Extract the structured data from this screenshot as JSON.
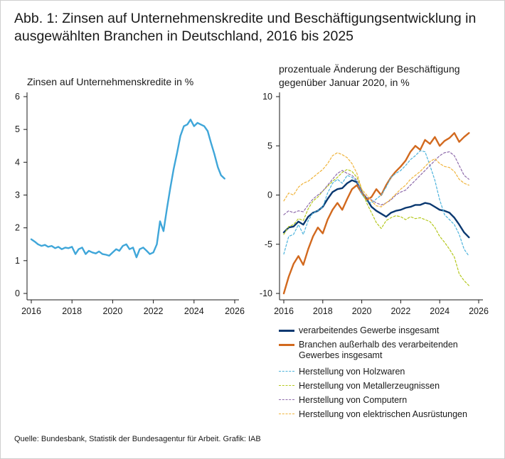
{
  "title": "Abb. 1: Zinsen auf Unternehmenskredite und Beschäftigungsentwicklung in ausgewählten Branchen in Deutschland, 2016 bis 2025",
  "source": "Quelle: Bundesbank, Statistik der Bundesagentur für Arbeit. Grafik: IAB",
  "chart_data": [
    {
      "type": "line",
      "title": "Zinsen auf Unternehmenskredite in %",
      "xlabel": "",
      "ylabel": "",
      "xlim": [
        2016,
        2026
      ],
      "ylim": [
        0,
        6
      ],
      "xticks": [
        2016,
        2018,
        2020,
        2022,
        2024,
        2026
      ],
      "yticks": [
        0,
        1,
        2,
        3,
        4,
        5,
        6
      ],
      "grid": false,
      "series": [
        {
          "name": "",
          "color": "#3fa6d9",
          "dash": "solid",
          "x": [
            2016.0,
            2016.17,
            2016.33,
            2016.5,
            2016.67,
            2016.83,
            2017.0,
            2017.17,
            2017.33,
            2017.5,
            2017.67,
            2017.83,
            2018.0,
            2018.17,
            2018.33,
            2018.5,
            2018.67,
            2018.83,
            2019.0,
            2019.17,
            2019.33,
            2019.5,
            2019.67,
            2019.83,
            2020.0,
            2020.17,
            2020.33,
            2020.5,
            2020.67,
            2020.83,
            2021.0,
            2021.17,
            2021.33,
            2021.5,
            2021.67,
            2021.83,
            2022.0,
            2022.17,
            2022.33,
            2022.5,
            2022.67,
            2022.83,
            2023.0,
            2023.17,
            2023.33,
            2023.5,
            2023.67,
            2023.83,
            2024.0,
            2024.17,
            2024.33,
            2024.5,
            2024.67,
            2024.83,
            2025.0,
            2025.17,
            2025.33,
            2025.5
          ],
          "y": [
            1.65,
            1.58,
            1.5,
            1.45,
            1.48,
            1.42,
            1.45,
            1.38,
            1.42,
            1.35,
            1.4,
            1.38,
            1.42,
            1.2,
            1.35,
            1.4,
            1.2,
            1.3,
            1.25,
            1.22,
            1.28,
            1.2,
            1.18,
            1.15,
            1.25,
            1.35,
            1.3,
            1.45,
            1.5,
            1.35,
            1.4,
            1.1,
            1.35,
            1.4,
            1.3,
            1.2,
            1.25,
            1.5,
            2.2,
            1.9,
            2.6,
            3.2,
            3.8,
            4.3,
            4.8,
            5.1,
            5.15,
            5.3,
            5.1,
            5.2,
            5.15,
            5.1,
            4.95,
            4.6,
            4.25,
            3.85,
            3.6,
            3.5
          ]
        }
      ]
    },
    {
      "type": "line",
      "title": "prozentuale Änderung der Beschäftigung gegenüber Januar 2020, in %",
      "xlabel": "",
      "ylabel": "",
      "xlim": [
        2016,
        2026
      ],
      "ylim": [
        -10,
        10
      ],
      "xticks": [
        2016,
        2018,
        2020,
        2022,
        2024,
        2026
      ],
      "yticks": [
        -10,
        -5,
        0,
        5,
        10
      ],
      "grid": false,
      "legend": "bottom",
      "series": [
        {
          "name": "verarbeitendes Gewerbe insgesamt",
          "color": "#0a3870",
          "dash": "solid",
          "x": [
            2016.0,
            2016.25,
            2016.5,
            2016.75,
            2017.0,
            2017.25,
            2017.5,
            2017.75,
            2018.0,
            2018.25,
            2018.5,
            2018.75,
            2019.0,
            2019.25,
            2019.5,
            2019.75,
            2020.0,
            2020.25,
            2020.5,
            2020.75,
            2021.0,
            2021.25,
            2021.5,
            2021.75,
            2022.0,
            2022.25,
            2022.5,
            2022.75,
            2023.0,
            2023.25,
            2023.5,
            2023.75,
            2024.0,
            2024.25,
            2024.5,
            2024.75,
            2025.0,
            2025.25,
            2025.5
          ],
          "y": [
            -3.8,
            -3.3,
            -3.2,
            -2.7,
            -3.0,
            -2.2,
            -1.8,
            -1.6,
            -1.2,
            -0.4,
            0.3,
            0.6,
            0.7,
            1.2,
            1.5,
            1.3,
            0.3,
            -0.4,
            -1.2,
            -1.6,
            -1.9,
            -2.2,
            -1.8,
            -1.6,
            -1.5,
            -1.3,
            -1.2,
            -1.0,
            -1.0,
            -0.8,
            -0.9,
            -1.2,
            -1.5,
            -1.6,
            -1.8,
            -2.3,
            -3.0,
            -3.8,
            -4.3
          ]
        },
        {
          "name": "Branchen außerhalb des verarbeitenden Gewerbes insgesamt",
          "color": "#d2691e",
          "dash": "solid",
          "x": [
            2016.0,
            2016.25,
            2016.5,
            2016.75,
            2017.0,
            2017.25,
            2017.5,
            2017.75,
            2018.0,
            2018.25,
            2018.5,
            2018.75,
            2019.0,
            2019.25,
            2019.5,
            2019.75,
            2020.0,
            2020.25,
            2020.5,
            2020.75,
            2021.0,
            2021.25,
            2021.5,
            2021.75,
            2022.0,
            2022.25,
            2022.5,
            2022.75,
            2023.0,
            2023.25,
            2023.5,
            2023.75,
            2024.0,
            2024.25,
            2024.5,
            2024.75,
            2025.0,
            2025.25,
            2025.5
          ],
          "y": [
            -10.0,
            -8.3,
            -7.0,
            -6.2,
            -7.1,
            -5.5,
            -4.2,
            -3.3,
            -3.9,
            -2.5,
            -1.5,
            -0.8,
            -1.5,
            -0.4,
            0.6,
            1.0,
            0.2,
            -0.5,
            -0.2,
            0.6,
            0.0,
            1.0,
            1.8,
            2.4,
            2.9,
            3.5,
            4.4,
            5.0,
            4.6,
            5.6,
            5.2,
            5.9,
            5.0,
            5.5,
            5.8,
            6.3,
            5.4,
            5.9,
            6.3
          ]
        },
        {
          "name": "Herstellung von Holzwaren",
          "color": "#4db3dc",
          "dash": "dashed",
          "x": [
            2016.0,
            2016.25,
            2016.5,
            2016.75,
            2017.0,
            2017.25,
            2017.5,
            2017.75,
            2018.0,
            2018.25,
            2018.5,
            2018.75,
            2019.0,
            2019.25,
            2019.5,
            2019.75,
            2020.0,
            2020.25,
            2020.5,
            2020.75,
            2021.0,
            2021.25,
            2021.5,
            2021.75,
            2022.0,
            2022.25,
            2022.5,
            2022.75,
            2023.0,
            2023.25,
            2023.5,
            2023.75,
            2024.0,
            2024.25,
            2024.5,
            2024.75,
            2025.0,
            2025.25,
            2025.5
          ],
          "y": [
            -6.0,
            -4.2,
            -4.0,
            -3.0,
            -4.0,
            -2.6,
            -1.8,
            -1.6,
            -1.2,
            0.2,
            1.2,
            1.6,
            1.2,
            2.0,
            1.8,
            1.4,
            0.1,
            -0.6,
            -0.8,
            -0.4,
            0.0,
            0.8,
            1.8,
            2.2,
            2.5,
            3.0,
            3.6,
            4.0,
            4.5,
            4.4,
            3.0,
            1.5,
            -0.5,
            -2.0,
            -2.5,
            -3.0,
            -4.0,
            -5.5,
            -6.2
          ]
        },
        {
          "name": "Herstellung von Metallerzeugnissen",
          "color": "#b5c81e",
          "dash": "dashed",
          "x": [
            2016.0,
            2016.25,
            2016.5,
            2016.75,
            2017.0,
            2017.25,
            2017.5,
            2017.75,
            2018.0,
            2018.25,
            2018.5,
            2018.75,
            2019.0,
            2019.25,
            2019.5,
            2019.75,
            2020.0,
            2020.25,
            2020.5,
            2020.75,
            2021.0,
            2021.25,
            2021.5,
            2021.75,
            2022.0,
            2022.25,
            2022.5,
            2022.75,
            2023.0,
            2023.25,
            2023.5,
            2023.75,
            2024.0,
            2024.25,
            2024.5,
            2024.75,
            2025.0,
            2025.25,
            2025.5
          ],
          "y": [
            -4.0,
            -3.2,
            -3.0,
            -2.4,
            -2.6,
            -1.4,
            -0.6,
            -0.2,
            0.4,
            0.9,
            1.4,
            1.8,
            2.3,
            2.6,
            2.4,
            1.8,
            0.6,
            -0.8,
            -1.8,
            -2.8,
            -3.4,
            -2.6,
            -2.3,
            -2.1,
            -2.2,
            -2.5,
            -2.2,
            -2.4,
            -2.3,
            -2.5,
            -2.7,
            -3.3,
            -4.2,
            -4.8,
            -5.5,
            -6.3,
            -8.0,
            -8.7,
            -9.2
          ]
        },
        {
          "name": "Herstellung von Computern",
          "color": "#8e6bab",
          "dash": "dashed",
          "x": [
            2016.0,
            2016.25,
            2016.5,
            2016.75,
            2017.0,
            2017.25,
            2017.5,
            2017.75,
            2018.0,
            2018.25,
            2018.5,
            2018.75,
            2019.0,
            2019.25,
            2019.5,
            2019.75,
            2020.0,
            2020.25,
            2020.5,
            2020.75,
            2021.0,
            2021.25,
            2021.5,
            2021.75,
            2022.0,
            2022.25,
            2022.5,
            2022.75,
            2023.0,
            2023.25,
            2023.5,
            2023.75,
            2024.0,
            2024.25,
            2024.5,
            2024.75,
            2025.0,
            2025.25,
            2025.5
          ],
          "y": [
            -2.0,
            -1.6,
            -1.8,
            -1.6,
            -1.7,
            -1.0,
            -0.4,
            0.0,
            0.4,
            1.0,
            1.6,
            2.2,
            2.5,
            2.2,
            2.0,
            1.5,
            0.3,
            -0.2,
            -0.5,
            -0.8,
            -1.0,
            -0.8,
            -0.5,
            0.0,
            0.3,
            0.5,
            1.0,
            1.5,
            2.0,
            2.5,
            3.0,
            3.5,
            4.0,
            4.3,
            4.4,
            4.0,
            3.0,
            2.0,
            1.6
          ]
        },
        {
          "name": "Herstellung von elektrischen Ausrüstungen",
          "color": "#f0b43c",
          "dash": "dashed",
          "x": [
            2016.0,
            2016.25,
            2016.5,
            2016.75,
            2017.0,
            2017.25,
            2017.5,
            2017.75,
            2018.0,
            2018.25,
            2018.5,
            2018.75,
            2019.0,
            2019.25,
            2019.5,
            2019.75,
            2020.0,
            2020.25,
            2020.5,
            2020.75,
            2021.0,
            2021.25,
            2021.5,
            2021.75,
            2022.0,
            2022.25,
            2022.5,
            2022.75,
            2023.0,
            2023.25,
            2023.5,
            2023.75,
            2024.0,
            2024.25,
            2024.5,
            2024.75,
            2025.0,
            2025.25,
            2025.5
          ],
          "y": [
            -0.6,
            0.2,
            0.0,
            0.8,
            1.2,
            1.4,
            1.8,
            2.2,
            2.6,
            3.2,
            4.0,
            4.3,
            4.1,
            3.8,
            3.2,
            2.2,
            0.6,
            0.0,
            -0.6,
            -1.1,
            -1.2,
            -0.8,
            -0.4,
            0.1,
            0.6,
            1.0,
            1.6,
            2.0,
            2.4,
            2.9,
            3.4,
            3.7,
            3.2,
            2.9,
            2.8,
            2.4,
            1.6,
            1.2,
            1.0
          ]
        }
      ]
    }
  ]
}
